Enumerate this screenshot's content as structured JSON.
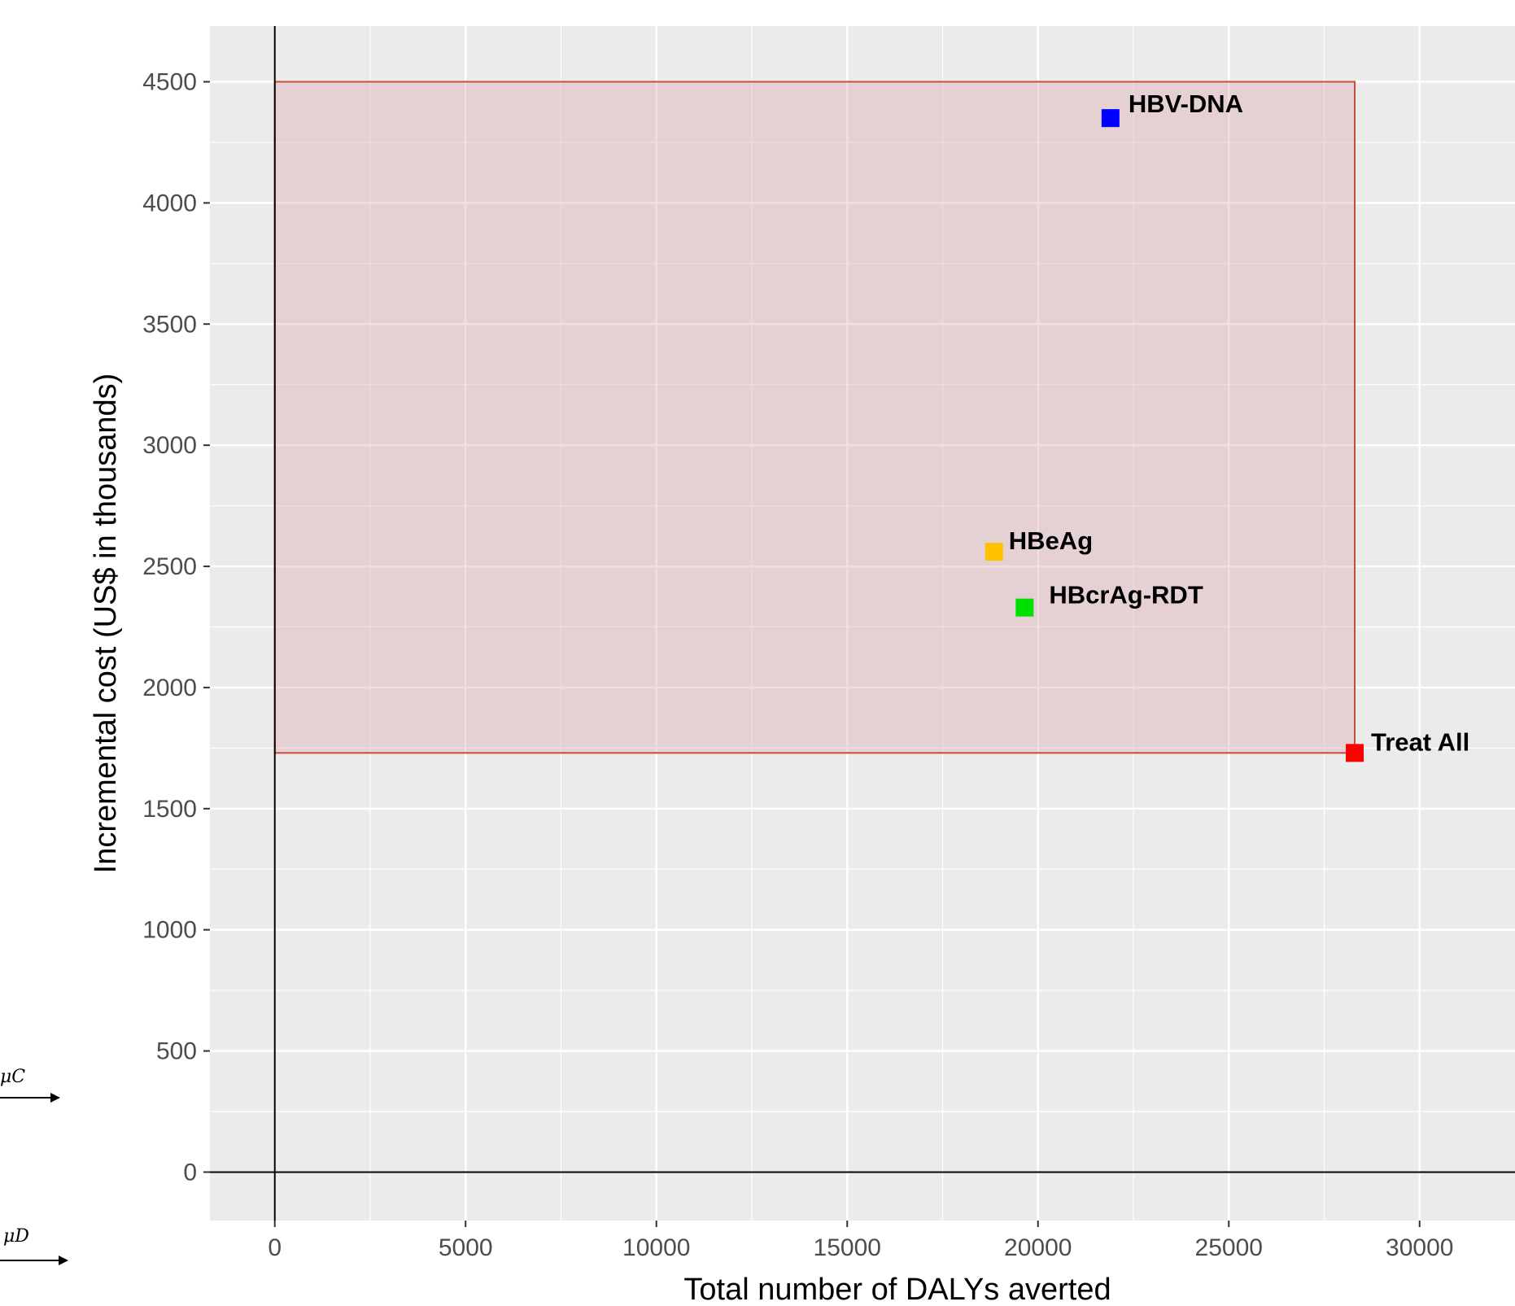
{
  "chart_data": {
    "type": "scatter",
    "title": "",
    "xlabel": "Total number of DALYs averted",
    "ylabel": "Incremental cost (US$ in thousands)",
    "xlim": [
      -1700,
      32500
    ],
    "ylim": [
      -200,
      4730
    ],
    "x_ticks": [
      0,
      5000,
      10000,
      15000,
      20000,
      25000,
      30000
    ],
    "y_ticks": [
      0,
      500,
      1000,
      1500,
      2000,
      2500,
      3000,
      3500,
      4000,
      4500
    ],
    "grid": true,
    "points": [
      {
        "label": "HBV-DNA",
        "x": 21900,
        "y": 4350,
        "color": "#0000ff"
      },
      {
        "label": "HBeAg",
        "x": 18850,
        "y": 2560,
        "color": "#ffc000"
      },
      {
        "label": "HBcrAg-RDT",
        "x": 19650,
        "y": 2330,
        "color": "#00e000"
      },
      {
        "label": "Treat All",
        "x": 28300,
        "y": 1730,
        "color": "#ff0000"
      }
    ],
    "shaded_region": {
      "x": [
        0,
        28300
      ],
      "y": [
        1730,
        4500
      ],
      "fill": "#d9a0a8",
      "stroke": "#cc4a3a"
    }
  },
  "side_labels": {
    "top": "μC",
    "bottom": "μD"
  },
  "colors": {
    "panel": "#ebebeb",
    "grid": "#ffffff",
    "axis_line": "#000000"
  }
}
